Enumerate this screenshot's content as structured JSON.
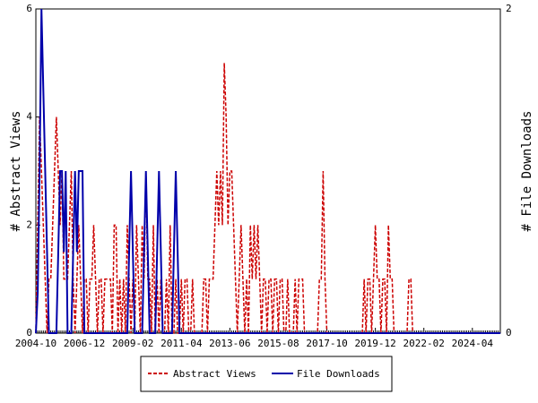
{
  "chart_data": {
    "type": "line",
    "y_label": "# Abstract Views",
    "y2_label": "# File Downloads",
    "categories": [
      "2004-10",
      null,
      null,
      null,
      null,
      null,
      null,
      null,
      null,
      null,
      null,
      null,
      null,
      null,
      null,
      null,
      null,
      null,
      null,
      null,
      null,
      null,
      null,
      null,
      null,
      null,
      "2006-12",
      null,
      null,
      null,
      null,
      null,
      null,
      null,
      null,
      null,
      null,
      null,
      null,
      null,
      null,
      null,
      null,
      null,
      null,
      null,
      null,
      null,
      null,
      null,
      null,
      null,
      "2009-02",
      null,
      null,
      null,
      null,
      null,
      null,
      null,
      null,
      null,
      null,
      null,
      null,
      null,
      null,
      null,
      null,
      null,
      null,
      null,
      null,
      null,
      null,
      null,
      null,
      null,
      "2011-04",
      null,
      null,
      null,
      null,
      null,
      null,
      null,
      null,
      null,
      null,
      null,
      null,
      null,
      null,
      null,
      null,
      null,
      null,
      null,
      null,
      null,
      null,
      null,
      null,
      null,
      "2013-06",
      null,
      null,
      null,
      null,
      null,
      null,
      null,
      null,
      null,
      null,
      null,
      null,
      null,
      null,
      null,
      null,
      null,
      null,
      null,
      null,
      null,
      null,
      null,
      null,
      null,
      "2015-08",
      null,
      null,
      null,
      null,
      null,
      null,
      null,
      null,
      null,
      null,
      null,
      null,
      null,
      null,
      null,
      null,
      null,
      null,
      null,
      null,
      null,
      null,
      null,
      null,
      null,
      "2017-10",
      null,
      null,
      null,
      null,
      null,
      null,
      null,
      null,
      null,
      null,
      null,
      null,
      null,
      null,
      null,
      null,
      null,
      null,
      null,
      null,
      null,
      null,
      null,
      null,
      null,
      "2019-12",
      null,
      null,
      null,
      null,
      null,
      null,
      null,
      null,
      null,
      null,
      null,
      null,
      null,
      null,
      null,
      null,
      null,
      null,
      null,
      null,
      null,
      null,
      null,
      null,
      null,
      "2022-02",
      null,
      null,
      null,
      null,
      null,
      null,
      null,
      null,
      null,
      null,
      null,
      null,
      null,
      null,
      null,
      null,
      null,
      null,
      null,
      null,
      null,
      null,
      null,
      null,
      null,
      "2024-04",
      null,
      null,
      null,
      null,
      null,
      null,
      null,
      null,
      null,
      null,
      null,
      null,
      null,
      null,
      null
    ],
    "series": [
      {
        "name": "Abstract Views",
        "color": "#cc0000",
        "dash": true,
        "axis": "y",
        "values": [
          0,
          2,
          4,
          3,
          2,
          1,
          0,
          1,
          1,
          2,
          3,
          4,
          3,
          2,
          3,
          1,
          1,
          1,
          2,
          3,
          1,
          0,
          1,
          2,
          1,
          0,
          1,
          1,
          0,
          1,
          1,
          2,
          1,
          0,
          1,
          1,
          0,
          1,
          1,
          1,
          1,
          0,
          2,
          2,
          0,
          1,
          0,
          1,
          0,
          2,
          1,
          0,
          1,
          0,
          2,
          1,
          0,
          2,
          1,
          3,
          1,
          1,
          0,
          2,
          0,
          1,
          0,
          1,
          0,
          0,
          1,
          0,
          2,
          0,
          0,
          1,
          0,
          0,
          1,
          0,
          1,
          1,
          0,
          0,
          1,
          0,
          0,
          0,
          0,
          0,
          1,
          1,
          0,
          1,
          1,
          1,
          2,
          3,
          2,
          3,
          2,
          5,
          4,
          2,
          3,
          3,
          2,
          1,
          0,
          1,
          2,
          1,
          0,
          1,
          0,
          2,
          1,
          2,
          1,
          2,
          1,
          0,
          1,
          1,
          0,
          1,
          1,
          0,
          1,
          1,
          0,
          1,
          1,
          0,
          0,
          1,
          0,
          0,
          0,
          1,
          0,
          1,
          1,
          1,
          0,
          0,
          0,
          0,
          0,
          0,
          0,
          0,
          1,
          1,
          3,
          1,
          0,
          0,
          0,
          0,
          0,
          0,
          0,
          0,
          0,
          0,
          0,
          0,
          0,
          0,
          0,
          0,
          0,
          0,
          0,
          0,
          1,
          0,
          1,
          1,
          0,
          1,
          2,
          1,
          1,
          0,
          1,
          1,
          0,
          2,
          1,
          1,
          0,
          0,
          0,
          0,
          0,
          0,
          0,
          0,
          1,
          1,
          0,
          0,
          0,
          0,
          0,
          0,
          0,
          0,
          0,
          0,
          0,
          0,
          0,
          0,
          0,
          0,
          0,
          0,
          0,
          0,
          0,
          0,
          0,
          0,
          0,
          0,
          0,
          0,
          0,
          0,
          0,
          0,
          0,
          0,
          0,
          0,
          0,
          0,
          0,
          0,
          0,
          0,
          0,
          0,
          0,
          0,
          0,
          0
        ]
      },
      {
        "name": "File Downloads",
        "color": "#0000aa",
        "dash": false,
        "axis": "y2",
        "values": [
          0,
          0.25,
          1,
          2,
          1.5,
          1,
          0.5,
          0,
          0,
          0,
          0,
          0,
          0.5,
          1,
          1,
          0.5,
          1,
          0,
          0,
          0,
          0.5,
          1,
          0.5,
          1,
          1,
          1,
          0,
          0,
          0,
          0,
          0,
          0,
          0,
          0,
          0,
          0,
          0,
          0,
          0,
          0,
          0,
          0,
          0,
          0,
          0,
          0,
          0,
          0,
          0,
          0,
          0.5,
          1,
          0.5,
          0,
          0,
          0,
          0,
          0,
          0.5,
          1,
          0.5,
          0,
          0,
          0,
          0,
          0.5,
          1,
          0.5,
          0,
          0,
          0,
          0,
          0,
          0,
          0.5,
          1,
          0.5,
          0,
          0,
          0,
          0,
          0,
          0,
          0,
          0,
          0,
          0,
          0,
          0,
          0,
          0,
          0,
          0,
          0,
          0,
          0,
          0,
          0,
          0,
          0,
          0,
          0,
          0,
          0,
          0,
          0,
          0,
          0,
          0,
          0,
          0,
          0,
          0,
          0,
          0,
          0,
          0,
          0,
          0,
          0,
          0,
          0,
          0,
          0,
          0,
          0,
          0,
          0,
          0,
          0,
          0,
          0,
          0,
          0,
          0,
          0,
          0,
          0,
          0,
          0,
          0,
          0,
          0,
          0,
          0,
          0,
          0,
          0,
          0,
          0,
          0,
          0,
          0,
          0,
          0,
          0,
          0,
          0,
          0,
          0,
          0,
          0,
          0,
          0,
          0,
          0,
          0,
          0,
          0,
          0,
          0,
          0,
          0,
          0,
          0,
          0,
          0,
          0,
          0,
          0,
          0,
          0,
          0,
          0,
          0,
          0,
          0,
          0,
          0,
          0,
          0,
          0,
          0,
          0,
          0,
          0,
          0,
          0,
          0,
          0,
          0,
          0,
          0,
          0,
          0,
          0,
          0,
          0,
          0,
          0,
          0,
          0,
          0,
          0,
          0,
          0,
          0,
          0,
          0,
          0,
          0,
          0,
          0,
          0,
          0,
          0,
          0,
          0,
          0,
          0,
          0,
          0,
          0,
          0,
          0,
          0,
          0,
          0,
          0,
          0,
          0,
          0,
          0,
          0,
          0,
          0,
          0,
          0,
          0,
          0
        ]
      }
    ],
    "ylim": [
      0,
      6
    ],
    "yticks": [
      0,
      2,
      4,
      6
    ],
    "y2lim": [
      0,
      2
    ],
    "y2ticks": [
      0,
      2
    ],
    "legend": "bottom"
  }
}
